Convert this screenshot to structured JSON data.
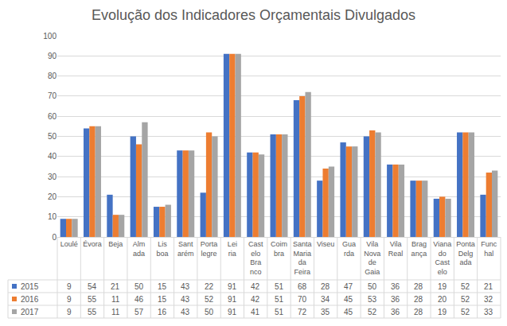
{
  "chart_data": {
    "type": "bar",
    "title": "Evolução dos Indicadores Orçamentais Divulgados",
    "categories": [
      "Loulé",
      "Évora",
      "Beja",
      "Almada",
      "Lisboa",
      "Santarém",
      "Portalegre",
      "Leiria",
      "Castelo Branco",
      "Coimbra",
      "Santa Maria da Feira",
      "Viseu",
      "Guarda",
      "Vila Nova de Gaia",
      "Vila Real",
      "Bragança",
      "Viana do Castelo",
      "Ponta Delgada",
      "Funchal"
    ],
    "series": [
      {
        "name": "2015",
        "color": "#4472c4",
        "values": [
          9,
          54,
          21,
          50,
          15,
          43,
          22,
          91,
          42,
          51,
          68,
          28,
          47,
          50,
          36,
          28,
          19,
          52,
          21
        ]
      },
      {
        "name": "2016",
        "color": "#ed7d31",
        "values": [
          9,
          55,
          11,
          46,
          15,
          43,
          52,
          91,
          42,
          51,
          70,
          34,
          45,
          53,
          36,
          28,
          20,
          52,
          32
        ]
      },
      {
        "name": "2017",
        "color": "#a5a5a5",
        "values": [
          9,
          55,
          11,
          57,
          16,
          43,
          50,
          91,
          41,
          51,
          72,
          35,
          45,
          52,
          36,
          28,
          19,
          52,
          33
        ]
      }
    ],
    "ylim": [
      0,
      100
    ],
    "yticks": [
      0,
      10,
      20,
      30,
      40,
      50,
      60,
      70,
      80,
      90,
      100
    ],
    "grid": true
  }
}
